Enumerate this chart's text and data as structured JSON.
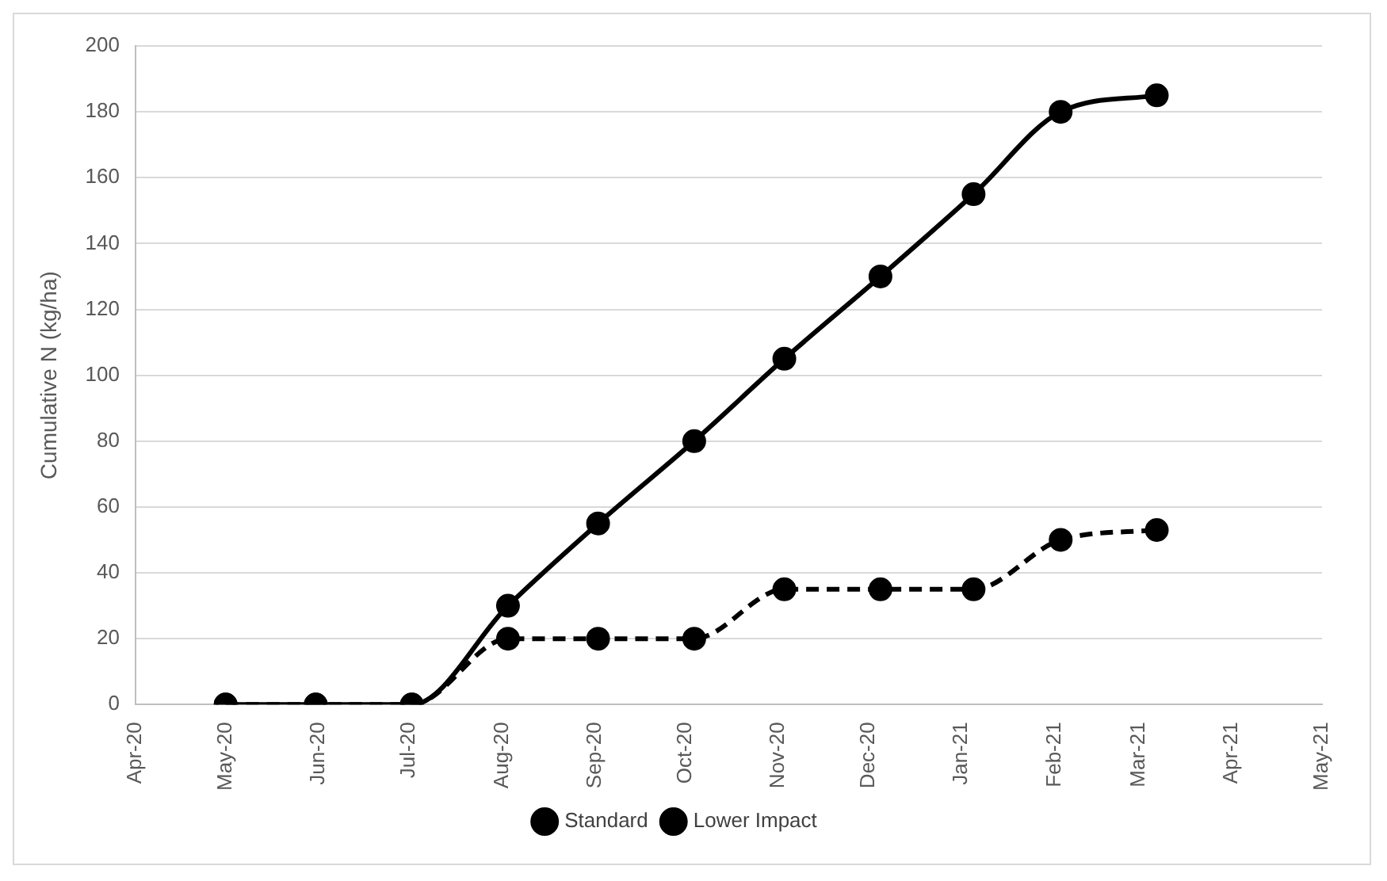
{
  "chart_data": {
    "type": "line",
    "ylabel": "Cumulative N (kg/ha)",
    "x": [
      "2020-05-01",
      "2020-05-31",
      "2020-07-02",
      "2020-08-03",
      "2020-09-02",
      "2020-10-04",
      "2020-11-03",
      "2020-12-05",
      "2021-01-05",
      "2021-02-03",
      "2021-03-07"
    ],
    "series": [
      {
        "name": "Standard",
        "color": "#000000",
        "values": [
          0,
          0,
          0,
          30,
          55,
          80,
          105,
          130,
          155,
          180,
          185
        ],
        "line_style": "solid"
      },
      {
        "name": "Lower Impact",
        "color": "#000000",
        "values": [
          0,
          0,
          0,
          20,
          20,
          20,
          35,
          35,
          35,
          50,
          53
        ],
        "line_style": "dashed"
      }
    ],
    "xlim": [
      "2020-04",
      "2021-05"
    ],
    "xticks": [
      {
        "value": "2020-04",
        "label": "Apr-20"
      },
      {
        "value": "2020-05",
        "label": "May-20"
      },
      {
        "value": "2020-06",
        "label": "Jun-20"
      },
      {
        "value": "2020-07",
        "label": "Jul-20"
      },
      {
        "value": "2020-08",
        "label": "Aug-20"
      },
      {
        "value": "2020-09",
        "label": "Sep-20"
      },
      {
        "value": "2020-10",
        "label": "Oct-20"
      },
      {
        "value": "2020-11",
        "label": "Nov-20"
      },
      {
        "value": "2020-12",
        "label": "Dec-20"
      },
      {
        "value": "2021-01",
        "label": "Jan-21"
      },
      {
        "value": "2021-02",
        "label": "Feb-21"
      },
      {
        "value": "2021-03",
        "label": "Mar-21"
      },
      {
        "value": "2021-04",
        "label": "Apr-21"
      },
      {
        "value": "2021-05",
        "label": "May-21"
      }
    ],
    "ylim": [
      0,
      200
    ],
    "yticks": [
      0,
      20,
      40,
      60,
      80,
      100,
      120,
      140,
      160,
      180,
      200
    ],
    "grid": "y",
    "legend": "bottom",
    "marker": "circle"
  }
}
